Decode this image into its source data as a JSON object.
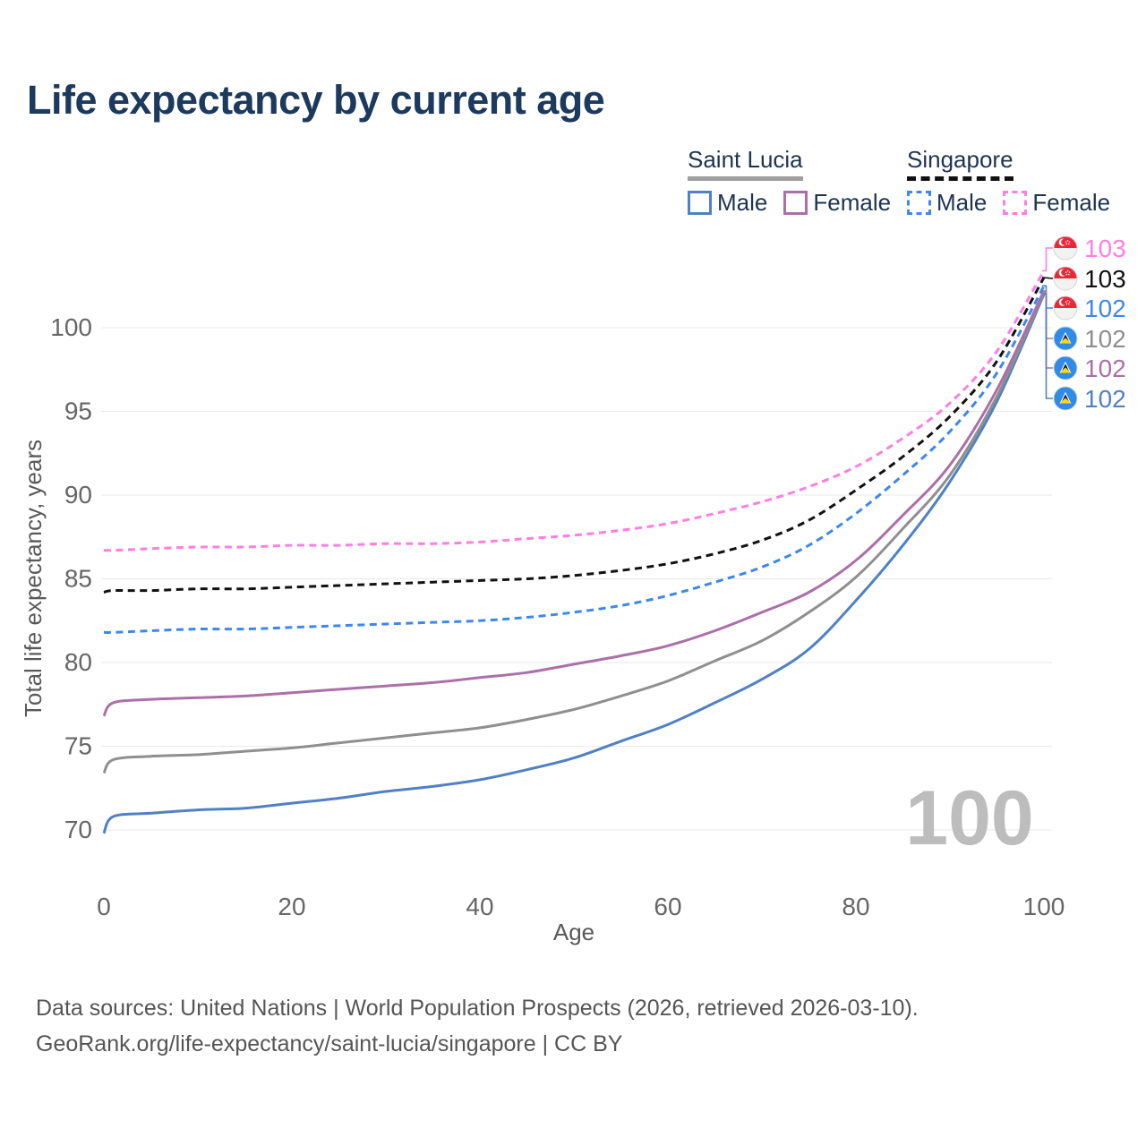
{
  "title": "Life expectancy by current age",
  "watermark": "100",
  "legend": {
    "groups": [
      {
        "name": "Saint Lucia",
        "line_style": "solid",
        "underline_color": "#9e9e9e",
        "items": [
          {
            "label": "Male",
            "color": "#5081c3"
          },
          {
            "label": "Female",
            "color": "#ac6fa8"
          }
        ]
      },
      {
        "name": "Singapore",
        "line_style": "dashed",
        "underline_color": "#111111",
        "items": [
          {
            "label": "Male",
            "color": "#3c87f0"
          },
          {
            "label": "Female",
            "color": "#ff7ee3"
          }
        ]
      }
    ]
  },
  "chart_data": {
    "type": "line",
    "title": "Life expectancy by current age",
    "xlabel": "Age",
    "ylabel": "Total life expectancy, years",
    "x_ticks": [
      0,
      20,
      40,
      60,
      80,
      100
    ],
    "y_ticks": [
      70,
      75,
      80,
      85,
      90,
      95,
      100
    ],
    "xlim": [
      0,
      100
    ],
    "ylim": [
      69.5,
      104
    ],
    "grid": "horizontal-only",
    "legend_position": "top-right",
    "ages": [
      0,
      1,
      5,
      10,
      15,
      20,
      25,
      30,
      35,
      40,
      45,
      50,
      55,
      60,
      65,
      70,
      75,
      80,
      85,
      90,
      95,
      100
    ],
    "series": [
      {
        "name": "Saint Lucia Male",
        "country": "Saint Lucia",
        "sex": "Male",
        "color": "#5081c3",
        "dashed": false,
        "end_label": "102",
        "values": [
          69.8,
          70.8,
          71.0,
          71.2,
          71.3,
          71.6,
          71.9,
          72.3,
          72.6,
          73.0,
          73.6,
          74.3,
          75.3,
          76.3,
          77.6,
          79.0,
          80.8,
          83.7,
          87.0,
          90.8,
          95.6,
          102.0
        ]
      },
      {
        "name": "Saint Lucia Both sexes",
        "country": "Saint Lucia",
        "sex": "Both",
        "color": "#8f8f8f",
        "dashed": false,
        "end_label": "102",
        "values": [
          73.4,
          74.2,
          74.4,
          74.5,
          74.7,
          74.9,
          75.2,
          75.5,
          75.8,
          76.1,
          76.6,
          77.2,
          78.0,
          78.9,
          80.1,
          81.3,
          83.0,
          85.1,
          88.0,
          91.2,
          95.9,
          102.1
        ]
      },
      {
        "name": "Saint Lucia Female",
        "country": "Saint Lucia",
        "sex": "Female",
        "color": "#ac6fa8",
        "dashed": false,
        "end_label": "102",
        "values": [
          76.8,
          77.6,
          77.8,
          77.9,
          78.0,
          78.2,
          78.4,
          78.6,
          78.8,
          79.1,
          79.4,
          79.9,
          80.4,
          81.0,
          81.9,
          83.0,
          84.2,
          86.1,
          88.8,
          91.8,
          96.3,
          102.2
        ]
      },
      {
        "name": "Singapore Male",
        "country": "Singapore",
        "sex": "Male",
        "color": "#3c87f0",
        "dashed": true,
        "end_label": "102",
        "values": [
          81.8,
          81.8,
          81.9,
          82.0,
          82.0,
          82.1,
          82.2,
          82.3,
          82.4,
          82.5,
          82.7,
          83.0,
          83.4,
          84.0,
          84.8,
          85.7,
          87.0,
          88.9,
          91.2,
          93.8,
          97.3,
          102.5
        ]
      },
      {
        "name": "Singapore Both sexes",
        "country": "Singapore",
        "sex": "Both",
        "color": "#111111",
        "dashed": true,
        "end_label": "103",
        "values": [
          84.2,
          84.3,
          84.3,
          84.4,
          84.4,
          84.5,
          84.6,
          84.7,
          84.8,
          84.9,
          85.0,
          85.2,
          85.5,
          85.9,
          86.5,
          87.3,
          88.5,
          90.3,
          92.3,
          94.7,
          98.0,
          103.0
        ]
      },
      {
        "name": "Singapore Female",
        "country": "Singapore",
        "sex": "Female",
        "color": "#ff7ee3",
        "dashed": true,
        "end_label": "103",
        "values": [
          86.7,
          86.7,
          86.8,
          86.9,
          86.9,
          87.0,
          87.0,
          87.1,
          87.1,
          87.2,
          87.4,
          87.6,
          87.9,
          88.3,
          88.9,
          89.6,
          90.5,
          91.7,
          93.4,
          95.5,
          98.6,
          103.4
        ]
      }
    ],
    "end_labels": [
      {
        "value": "103",
        "series": "Singapore Female",
        "flag": "singapore",
        "color": "#ff7ee3"
      },
      {
        "value": "103",
        "series": "Singapore Both sexes",
        "flag": "singapore",
        "color": "#111111"
      },
      {
        "value": "102",
        "series": "Singapore Male",
        "flag": "singapore",
        "color": "#3c87f0"
      },
      {
        "value": "102",
        "series": "Saint Lucia Both sexes",
        "flag": "saint-lucia",
        "color": "#8f8f8f"
      },
      {
        "value": "102",
        "series": "Saint Lucia Female",
        "flag": "saint-lucia",
        "color": "#ac6fa8"
      },
      {
        "value": "102",
        "series": "Saint Lucia Male",
        "flag": "saint-lucia",
        "color": "#5081c3"
      }
    ]
  },
  "footer": {
    "line1": "Data sources: United Nations | World Population Prospects (2026, retrieved 2026-03-10).",
    "line2": "GeoRank.org/life-expectancy/saint-lucia/singapore | CC BY"
  }
}
